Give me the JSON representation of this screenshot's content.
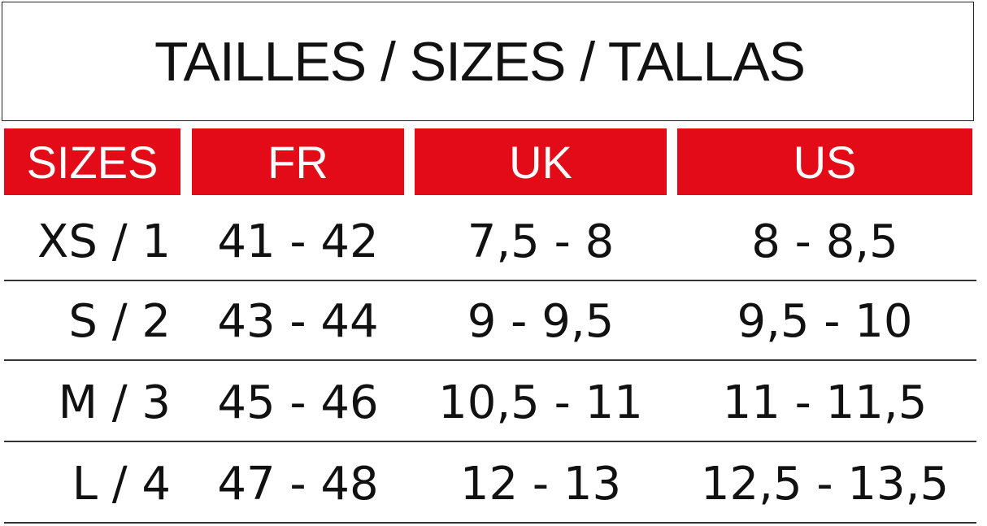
{
  "title": "TAILLES / SIZES / TALLAS",
  "table": {
    "header": [
      "SIZES",
      "FR",
      "UK",
      "US"
    ],
    "rows": [
      [
        "XS / 1",
        "41 - 42",
        "7,5 - 8",
        "8 - 8,5"
      ],
      [
        "S / 2",
        "43 - 44",
        "9 - 9,5",
        "9,5 - 10"
      ],
      [
        "M / 3",
        "45 - 46",
        "10,5 - 11",
        "11 - 11,5"
      ],
      [
        "L / 4",
        "47 - 48",
        "12 - 13",
        "12,5 - 13,5"
      ]
    ]
  }
}
